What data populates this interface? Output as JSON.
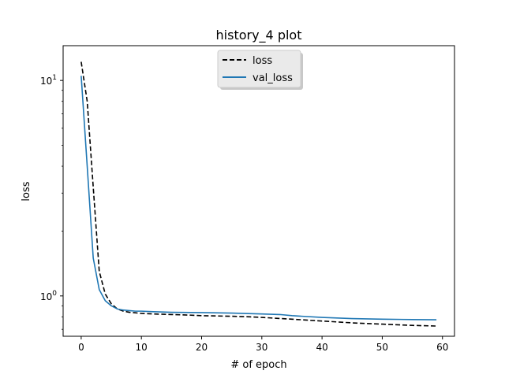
{
  "chart_data": {
    "type": "line",
    "title": "history_4 plot",
    "xlabel": "# of epoch",
    "ylabel": "loss",
    "xlim": [
      -3,
      62
    ],
    "ylim": [
      0.65,
      14.5
    ],
    "yscale": "log",
    "grid": false,
    "legend_position": "top-center",
    "x_ticks": [
      0,
      10,
      20,
      30,
      40,
      50,
      60
    ],
    "y_ticks": [
      1,
      10
    ],
    "y_tick_labels": [
      "10^0",
      "10^1"
    ],
    "series": [
      {
        "name": "loss",
        "color": "#000000",
        "style": "dashed",
        "x": [
          0,
          1,
          2,
          3,
          4,
          5,
          6,
          7,
          8,
          9,
          10,
          12,
          15,
          18,
          20,
          25,
          28,
          30,
          35,
          40,
          45,
          50,
          55,
          59
        ],
        "y": [
          12.2,
          8.0,
          3.2,
          1.3,
          1.02,
          0.92,
          0.87,
          0.85,
          0.84,
          0.835,
          0.83,
          0.825,
          0.82,
          0.815,
          0.81,
          0.805,
          0.8,
          0.795,
          0.78,
          0.765,
          0.75,
          0.74,
          0.73,
          0.725
        ]
      },
      {
        "name": "val_loss",
        "color": "#1f77b4",
        "style": "solid",
        "x": [
          0,
          1,
          2,
          3,
          4,
          5,
          6,
          7,
          8,
          9,
          10,
          12,
          15,
          20,
          25,
          30,
          33,
          35,
          40,
          45,
          50,
          55,
          59
        ],
        "y": [
          10.5,
          4.0,
          1.5,
          1.07,
          0.95,
          0.9,
          0.87,
          0.86,
          0.855,
          0.85,
          0.85,
          0.845,
          0.84,
          0.837,
          0.833,
          0.825,
          0.82,
          0.81,
          0.795,
          0.785,
          0.78,
          0.777,
          0.775
        ]
      }
    ]
  }
}
